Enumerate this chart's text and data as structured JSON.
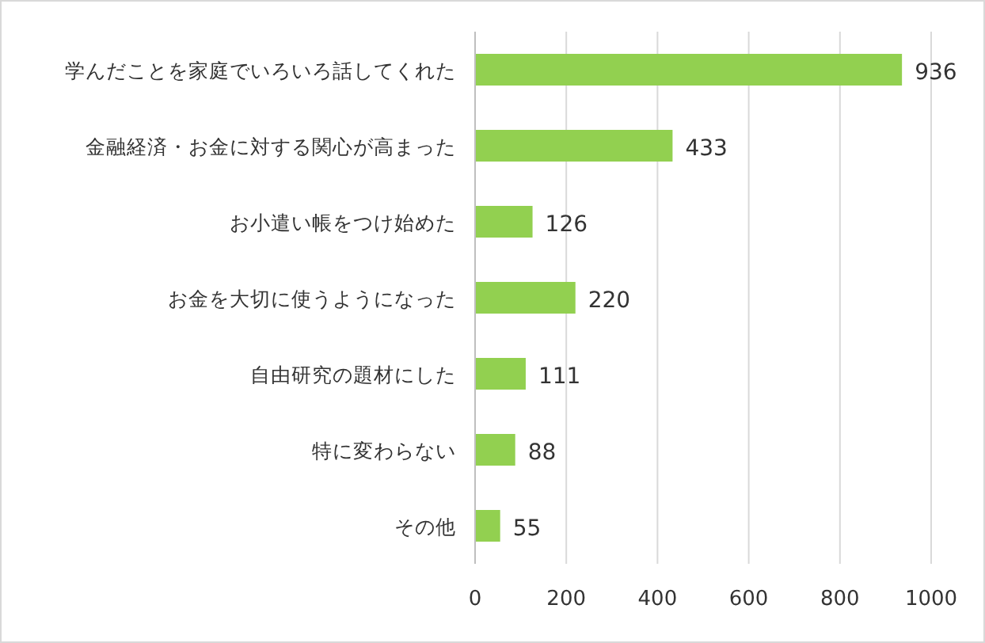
{
  "chart_data": {
    "type": "bar",
    "orientation": "horizontal",
    "categories": [
      "学んだことを家庭でいろいろ話してくれた",
      "金融経済・お金に対する関心が高まった",
      "お小遣い帳をつけ始めた",
      "お金を大切に使うようになった",
      "自由研究の題材にした",
      "特に変わらない",
      "その他"
    ],
    "values": [
      936,
      433,
      126,
      220,
      111,
      88,
      55
    ],
    "color": "#92d050",
    "xlim": [
      0,
      1000
    ],
    "xticks": [
      0,
      200,
      400,
      600,
      800,
      1000
    ],
    "grid": "x",
    "data_labels": true
  }
}
